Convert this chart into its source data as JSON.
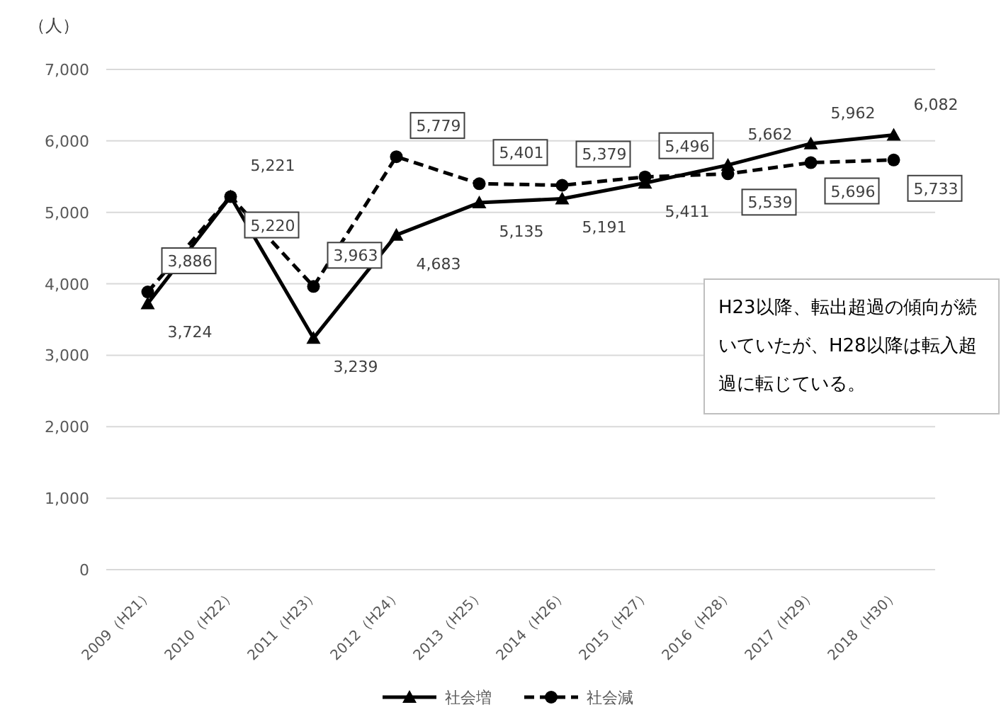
{
  "chart_data": {
    "type": "line",
    "ylabel": "（人）",
    "categories": [
      "2009（H21）",
      "2010（H22）",
      "2011（H23）",
      "2012（H24）",
      "2013（H25）",
      "2014（H26）",
      "2015（H27）",
      "2016（H28）",
      "2017（H29）",
      "2018（H30）"
    ],
    "series": [
      {
        "name": "社会増",
        "color": "#000000",
        "marker": "triangle",
        "line_style": "solid",
        "values": [
          3724,
          5221,
          3239,
          4683,
          5135,
          5191,
          5411,
          5662,
          5962,
          6082
        ],
        "value_labels": [
          "3,724",
          "5,221",
          "3,239",
          "4,683",
          "5,135",
          "5,191",
          "5,411",
          "5,662",
          "5,962",
          "6,082"
        ]
      },
      {
        "name": "社会減",
        "color": "#000000",
        "marker": "circle",
        "line_style": "dashed",
        "values": [
          3886,
          5220,
          3963,
          5779,
          5401,
          5379,
          5496,
          5539,
          5696,
          5733
        ],
        "value_labels": [
          "3,886",
          "5,220",
          "3,963",
          "5,779",
          "5,401",
          "5,379",
          "5,496",
          "5,539",
          "5,696",
          "5,733"
        ]
      }
    ],
    "ylim": [
      0,
      7000
    ],
    "yticks": [
      {
        "value": 0,
        "label": "0"
      },
      {
        "value": 1000,
        "label": "1,000"
      },
      {
        "value": 2000,
        "label": "2,000"
      },
      {
        "value": 3000,
        "label": "3,000"
      },
      {
        "value": 4000,
        "label": "4,000"
      },
      {
        "value": 5000,
        "label": "5,000"
      },
      {
        "value": 6000,
        "label": "6,000"
      },
      {
        "value": 7000,
        "label": "7,000"
      }
    ],
    "grid": "y",
    "legend": "bottom",
    "annotations": [
      "H23以降、転出超過の傾向が続いていたが、H28以降は転入超過に転じている。"
    ]
  }
}
